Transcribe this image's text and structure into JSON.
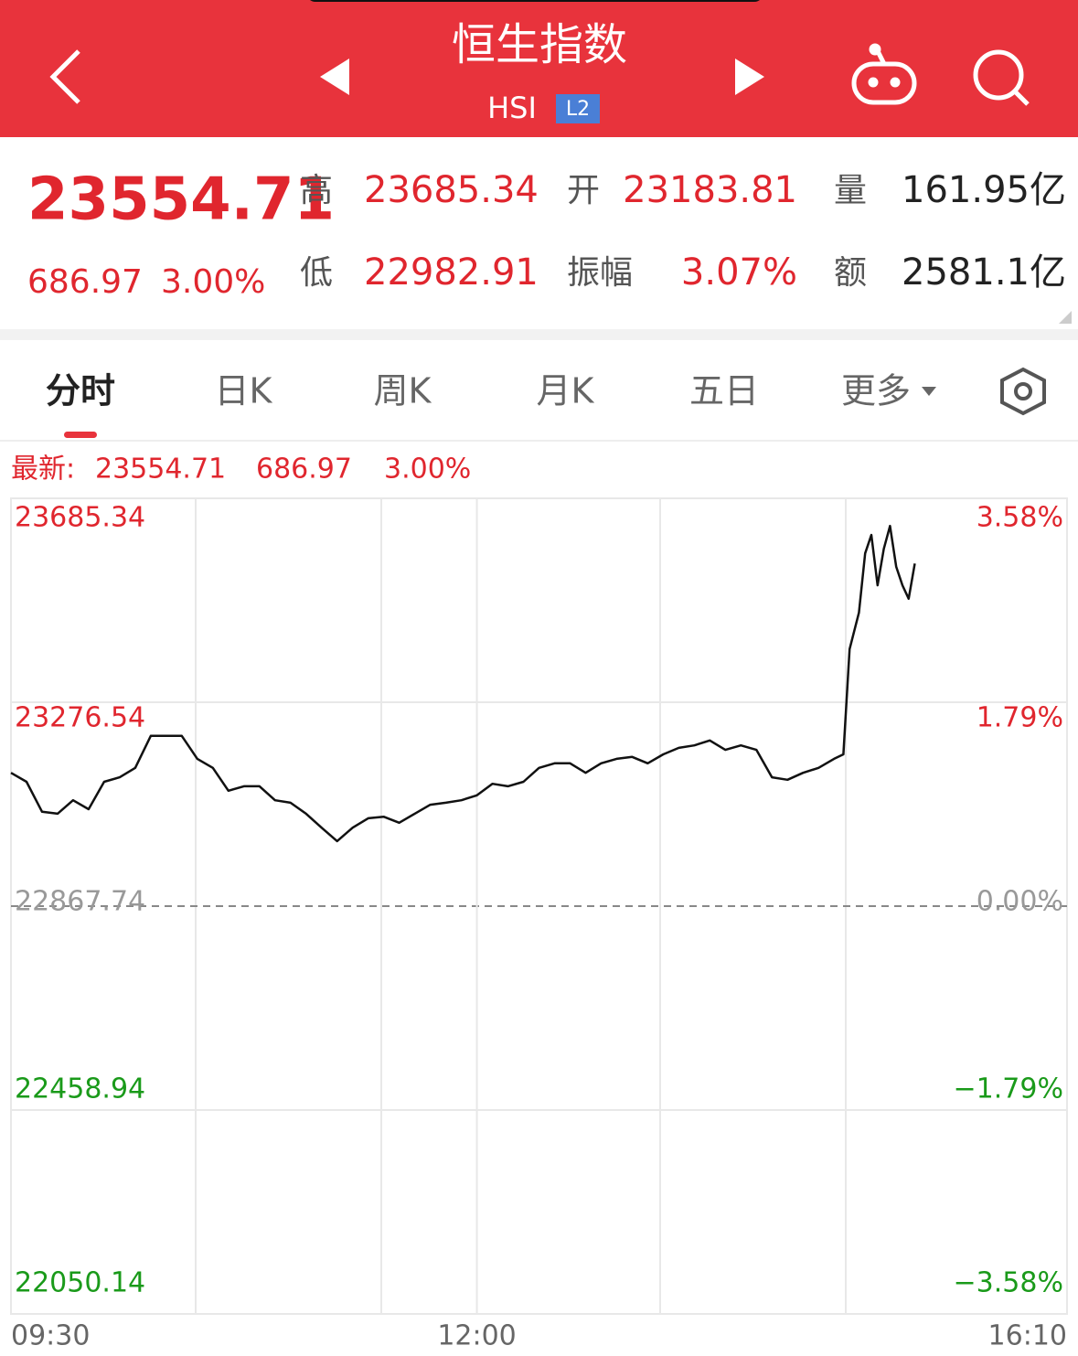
{
  "header": {
    "title": "恒生指数",
    "code": "HSI",
    "badge": "L2"
  },
  "quote": {
    "price": "23554.71",
    "change": "686.97",
    "change_pct": "3.00%",
    "stats": [
      {
        "label": "高",
        "value": "23685.34"
      },
      {
        "label": "开",
        "value": "23183.81"
      },
      {
        "label": "量",
        "value": "161.95亿"
      },
      {
        "label": "低",
        "value": "22982.91"
      },
      {
        "label": "振幅",
        "value": "3.07%"
      },
      {
        "label": "额",
        "value": "2581.1亿"
      }
    ]
  },
  "tabs": [
    "分时",
    "日K",
    "周K",
    "月K",
    "五日",
    "更多"
  ],
  "active_tab": 0,
  "latest": {
    "label": "最新:",
    "price": "23554.71",
    "change": "686.97",
    "change_pct": "3.00%"
  },
  "chart_data": {
    "type": "line",
    "color": "#111111",
    "up_color": "#e0262e",
    "down_color": "#1a9a1a",
    "flat_color": "#999999",
    "x": [
      0,
      5,
      10,
      15,
      20,
      25,
      30,
      35,
      40,
      45,
      50,
      55,
      60,
      65,
      70,
      75,
      80,
      85,
      90,
      95,
      100,
      105,
      110,
      115,
      120,
      125,
      130,
      135,
      140,
      145,
      150,
      155,
      160,
      165,
      170,
      175,
      180,
      185,
      190,
      195,
      200,
      205,
      210,
      215,
      220,
      225,
      230,
      235,
      240,
      245,
      250,
      255,
      260,
      265,
      268,
      270,
      273,
      275,
      277,
      279,
      281,
      283,
      285,
      287,
      289,
      291
    ],
    "values": [
      23135,
      23117,
      23057,
      23053,
      23080,
      23062,
      23117,
      23126,
      23145,
      23209,
      23209,
      23209,
      23163,
      23145,
      23099,
      23108,
      23108,
      23080,
      23075,
      23053,
      23025,
      22998,
      23025,
      23044,
      23047,
      23035,
      23053,
      23071,
      23075,
      23080,
      23090,
      23113,
      23108,
      23117,
      23145,
      23154,
      23154,
      23135,
      23154,
      23163,
      23167,
      23154,
      23172,
      23185,
      23190,
      23200,
      23181,
      23190,
      23181,
      23126,
      23121,
      23135,
      23145,
      23163,
      23172,
      23383,
      23456,
      23575,
      23612,
      23511,
      23584,
      23630,
      23548,
      23511,
      23484,
      23554.71
    ],
    "xlim": [
      0,
      340
    ],
    "xticks": [
      {
        "value": 0,
        "label": "09:30"
      },
      {
        "value": 150,
        "label": "12:00"
      },
      {
        "value": 340,
        "label": "16:10"
      }
    ],
    "ylim": [
      22050.14,
      23685.34
    ],
    "yticks": [
      23685.34,
      23276.54,
      22867.74,
      22458.94,
      22050.14
    ],
    "y2lim": [
      -3.58,
      3.58
    ],
    "y2ticks": [
      {
        "value": 3.58,
        "label": "3.58%"
      },
      {
        "value": 1.79,
        "label": "1.79%"
      },
      {
        "value": 0,
        "label": "0.00%"
      },
      {
        "value": -1.79,
        "label": "−1.79%"
      },
      {
        "value": -3.58,
        "label": "−3.58%"
      }
    ],
    "grid": true
  }
}
